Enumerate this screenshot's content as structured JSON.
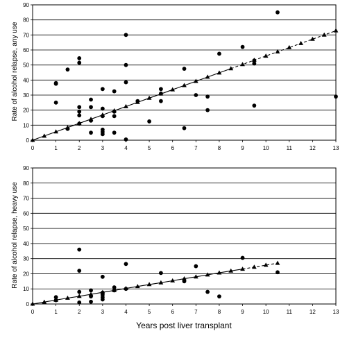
{
  "chart_data": [
    {
      "type": "scatter",
      "ylabel": "Rate of alcohol relapse, any use",
      "xlabel": "",
      "xlim": [
        0,
        13
      ],
      "ylim": [
        0,
        90
      ],
      "xticks": [
        0,
        1,
        2,
        3,
        4,
        5,
        6,
        7,
        8,
        9,
        10,
        11,
        12,
        13
      ],
      "yticks": [
        0,
        10,
        20,
        30,
        40,
        50,
        60,
        70,
        80,
        90
      ],
      "grid": "horizontal",
      "series": [
        {
          "marker": "circle",
          "points": [
            [
              1,
              38
            ],
            [
              1,
              37.5
            ],
            [
              1,
              25
            ],
            [
              1.5,
              47
            ],
            [
              1.5,
              7.5
            ],
            [
              2,
              54.5
            ],
            [
              2,
              51.5
            ],
            [
              2,
              22
            ],
            [
              2,
              19
            ],
            [
              2,
              16.5
            ],
            [
              2,
              11
            ],
            [
              2.5,
              27
            ],
            [
              2.5,
              22
            ],
            [
              2.5,
              13
            ],
            [
              2.5,
              5
            ],
            [
              3,
              34
            ],
            [
              3,
              21
            ],
            [
              3,
              16
            ],
            [
              3,
              7
            ],
            [
              3,
              5.5
            ],
            [
              3,
              4
            ],
            [
              3.5,
              32.5
            ],
            [
              3.5,
              19
            ],
            [
              3.5,
              16
            ],
            [
              3.5,
              5
            ],
            [
              4,
              70
            ],
            [
              4,
              50
            ],
            [
              4,
              38.5
            ],
            [
              4,
              0.5
            ],
            [
              4.5,
              26
            ],
            [
              5,
              12.5
            ],
            [
              5.5,
              34
            ],
            [
              5.5,
              31
            ],
            [
              5.5,
              26
            ],
            [
              6.5,
              47.5
            ],
            [
              6.5,
              8
            ],
            [
              7,
              30
            ],
            [
              7.5,
              29
            ],
            [
              7.5,
              20
            ],
            [
              8,
              57.5
            ],
            [
              9,
              62
            ],
            [
              9.5,
              53
            ],
            [
              9.5,
              51
            ],
            [
              9.5,
              23
            ],
            [
              10.5,
              85
            ],
            [
              13,
              29
            ]
          ]
        },
        {
          "marker": "triangle",
          "line": "solid-then-dashed",
          "dash_start_x": 8.5,
          "points": [
            [
              0,
              0
            ],
            [
              0.5,
              2.8
            ],
            [
              1,
              5.6
            ],
            [
              1.5,
              8.4
            ],
            [
              2,
              11.2
            ],
            [
              2.5,
              14
            ],
            [
              3,
              16.8
            ],
            [
              3.5,
              19.6
            ],
            [
              4,
              22.4
            ],
            [
              4.5,
              25.2
            ],
            [
              5,
              28
            ],
            [
              5.5,
              30.8
            ],
            [
              6,
              33.6
            ],
            [
              6.5,
              36.4
            ],
            [
              7,
              39.2
            ],
            [
              7.5,
              42
            ],
            [
              8,
              44.8
            ],
            [
              8.5,
              47.6
            ],
            [
              9,
              50.4
            ],
            [
              9.5,
              53.2
            ],
            [
              10,
              56
            ],
            [
              10.5,
              58.8
            ],
            [
              11,
              61.6
            ],
            [
              11.5,
              64.4
            ],
            [
              12,
              67.2
            ],
            [
              12.5,
              70
            ],
            [
              13,
              72.8
            ]
          ]
        }
      ]
    },
    {
      "type": "scatter",
      "ylabel": "Rate of alcohol relapse, heavy use",
      "xlabel": "Years post liver transplant",
      "xlim": [
        0,
        13
      ],
      "ylim": [
        0,
        90
      ],
      "xticks": [
        0,
        1,
        2,
        3,
        4,
        5,
        6,
        7,
        8,
        9,
        10,
        11,
        12,
        13
      ],
      "yticks": [
        0,
        10,
        20,
        30,
        40,
        50,
        60,
        70,
        80,
        90
      ],
      "grid": "horizontal",
      "series": [
        {
          "marker": "circle",
          "points": [
            [
              1,
              4.5
            ],
            [
              1,
              2.5
            ],
            [
              2,
              36
            ],
            [
              2,
              22
            ],
            [
              2,
              8
            ],
            [
              2,
              1
            ],
            [
              2.5,
              9
            ],
            [
              2.5,
              5
            ],
            [
              2.5,
              1.5
            ],
            [
              3,
              18
            ],
            [
              3,
              7.5
            ],
            [
              3,
              6
            ],
            [
              3,
              4.5
            ],
            [
              3,
              3
            ],
            [
              3.5,
              11
            ],
            [
              3.5,
              9
            ],
            [
              4,
              26.5
            ],
            [
              4,
              10
            ],
            [
              5.5,
              20.5
            ],
            [
              6.5,
              15
            ],
            [
              7,
              25
            ],
            [
              7.5,
              8
            ],
            [
              8,
              5
            ],
            [
              9,
              30.5
            ],
            [
              10.5,
              21
            ]
          ]
        },
        {
          "marker": "triangle",
          "line": "solid-then-dashed",
          "dash_start_x": 9,
          "points": [
            [
              0,
              0
            ],
            [
              0.5,
              1.3
            ],
            [
              1,
              2.6
            ],
            [
              1.5,
              3.9
            ],
            [
              2,
              5.1
            ],
            [
              2.5,
              6.4
            ],
            [
              3,
              7.7
            ],
            [
              3.5,
              9
            ],
            [
              4,
              10.3
            ],
            [
              4.5,
              11.6
            ],
            [
              5,
              12.9
            ],
            [
              5.5,
              14.1
            ],
            [
              6,
              15.4
            ],
            [
              6.5,
              16.7
            ],
            [
              7,
              18
            ],
            [
              7.5,
              19.3
            ],
            [
              8,
              20.6
            ],
            [
              8.5,
              21.9
            ],
            [
              9,
              23.1
            ],
            [
              9.5,
              24.4
            ],
            [
              10,
              25.7
            ],
            [
              10.5,
              27
            ]
          ]
        }
      ]
    }
  ]
}
